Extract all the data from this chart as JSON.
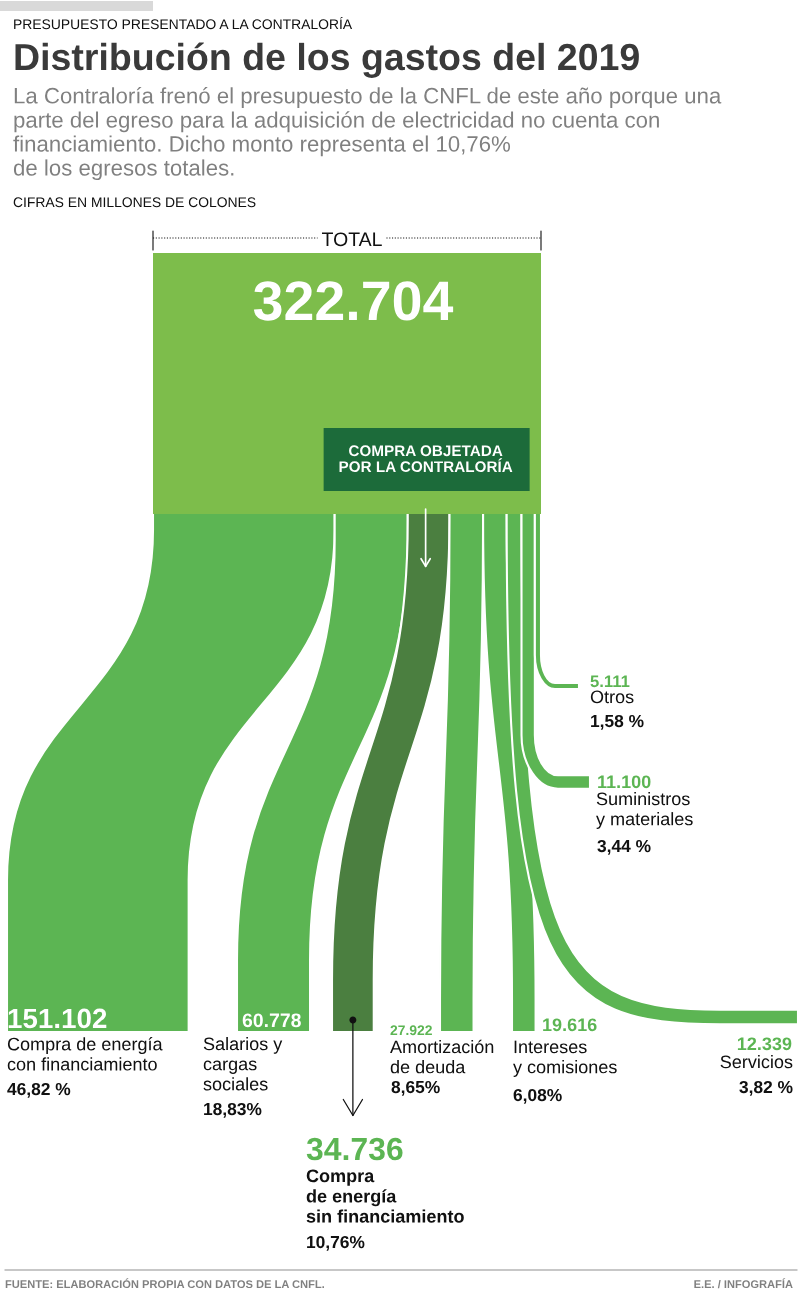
{
  "chart_data": {
    "type": "other",
    "title": "Distribución de los gastos del 2019",
    "subtitle": "La Contraloría frenó el presupuesto de la CNFL de este año porque una\nparte del egreso para la adquisición de electricidad no cuenta con\nfinanciamiento. Dicho monto representa el 10,76%\nde los egresos totales.",
    "annotations": [
      "PRESUPUESTO PRESENTADO A LA CONTRALORÍA",
      "CIFRAS EN MILLONES DE COLONES",
      "COMPRA OBJETADA\nPOR LA CONTRALORÍA",
      "FUENTE: ELABORACIÓN PROPIA CON DATOS DE LA CNFL.",
      "E.E. / INFOGRAFÍA"
    ],
    "categories": [
      "TOTAL",
      "Compra de energía\ncon financiamiento",
      "Salarios y\ncargas\nsociales",
      "Compra\nde energía\nsin financiamiento",
      "Amortización\nde deuda",
      "Intereses\ny comisiones",
      "Servicios",
      "Suministros\ny materiales",
      "Otros"
    ],
    "series": [
      {
        "colors": [
          "#7dbd4b",
          "#5cb553",
          "#5cb553",
          "#4b7f40",
          "#5cb553",
          "#5cb553",
          "#5cb553",
          "#5cb553",
          "#5cb553"
        ],
        "values": [
          322704,
          151102,
          60778,
          34736,
          27922,
          19616,
          12339,
          11100,
          5111
        ],
        "value_labels": [
          "322.704",
          "151.102",
          "60.778",
          "34.736",
          "27.922",
          "19.616",
          "12.339",
          "11.100",
          "5.111"
        ]
      },
      {
        "values": [
          null,
          46.82,
          18.83,
          10.76,
          8.65,
          6.08,
          3.82,
          3.44,
          1.58
        ],
        "value_labels": [
          null,
          "46,82 %",
          "18,83%",
          "10,76%",
          "8,65%",
          "6,08%",
          "3,82 %",
          "3,44 %",
          "1,58 %"
        ]
      }
    ]
  }
}
